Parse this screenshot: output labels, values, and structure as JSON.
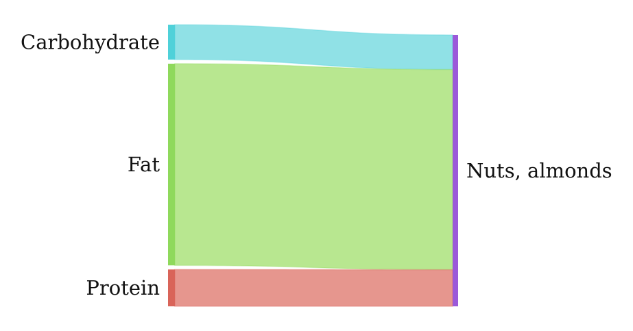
{
  "chart_data": {
    "type": "sankey",
    "title": "",
    "sources": [
      {
        "id": "carb",
        "label": "Carbohydrate",
        "value": 9,
        "color": "#4fd1d9",
        "link_color": "#90e1e6"
      },
      {
        "id": "fat",
        "label": "Fat",
        "value": 52,
        "color": "#8fd95c",
        "link_color": "#b8e790"
      },
      {
        "id": "protein",
        "label": "Protein",
        "value": 9.5,
        "color": "#d96459",
        "link_color": "#e6968e"
      }
    ],
    "target": {
      "id": "almonds",
      "label": "Nuts, almonds",
      "color": "#9b59d9"
    },
    "links": [
      {
        "source": "carb",
        "target": "almonds",
        "value": 9
      },
      {
        "source": "fat",
        "target": "almonds",
        "value": 52
      },
      {
        "source": "protein",
        "target": "almonds",
        "value": 9.5
      }
    ]
  }
}
